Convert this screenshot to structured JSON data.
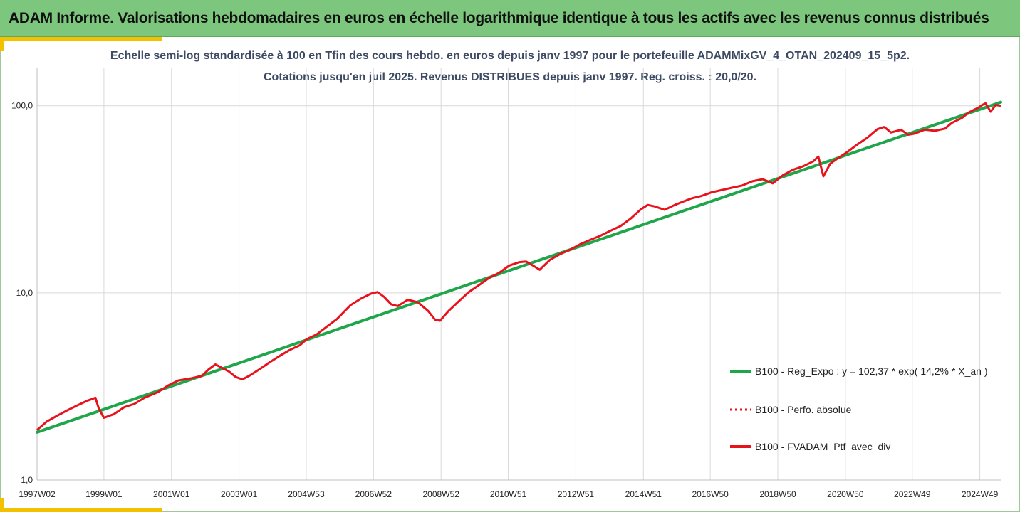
{
  "header": {
    "title": "ADAM Informe. Valorisations hebdomadaires en euros en échelle logarithmique identique à tous les actifs avec les revenus connus distribués"
  },
  "chart_data": {
    "type": "line",
    "subtitle_line1": "Echelle semi-log standardisée  à 100 en Tfin des cours hebdo.  en euros depuis janv 1997 pour le portefeuille ADAMMixGV_4_OTAN_202409_15_5p2.",
    "subtitle_line2": "Cotations  jusqu'en juil 2025. Revenus DISTRIBUES depuis janv 1997. Reg. croiss. : 20,0/20.",
    "y_scale": "log",
    "ylim": [
      1,
      160
    ],
    "y_ticks": [
      {
        "value": 1,
        "label": "1,0"
      },
      {
        "value": 10,
        "label": "10,0"
      },
      {
        "value": 100,
        "label": "100,0"
      }
    ],
    "x_range": [
      1997.02,
      2025.55
    ],
    "x_ticks": [
      {
        "x": 1997.02,
        "label": "1997W02"
      },
      {
        "x": 1999.0,
        "label": "1999W01"
      },
      {
        "x": 2001.0,
        "label": "2001W01"
      },
      {
        "x": 2003.0,
        "label": "2003W01"
      },
      {
        "x": 2004.99,
        "label": "2004W53"
      },
      {
        "x": 2006.98,
        "label": "2006W52"
      },
      {
        "x": 2008.98,
        "label": "2008W52"
      },
      {
        "x": 2010.97,
        "label": "2010W51"
      },
      {
        "x": 2012.97,
        "label": "2012W51"
      },
      {
        "x": 2014.97,
        "label": "2014W51"
      },
      {
        "x": 2016.95,
        "label": "2016W50"
      },
      {
        "x": 2018.95,
        "label": "2018W50"
      },
      {
        "x": 2020.95,
        "label": "2020W50"
      },
      {
        "x": 2022.93,
        "label": "2022W49"
      },
      {
        "x": 2024.93,
        "label": "2024W49"
      }
    ],
    "grid": true,
    "legend_position": "right",
    "series": [
      {
        "name": "B100 - Reg_Expo : y = 102,37 * exp( 14,2% *  X_an )",
        "color": "#1fa64a",
        "style": "solid",
        "x": [
          1997.02,
          2025.55
        ],
        "y": [
          1.8,
          104.5
        ]
      },
      {
        "name": "B100 - Perfo. absolue",
        "color": "#e8121c",
        "style": "dotted",
        "x": [],
        "y": []
      },
      {
        "name": "B100 - FVADAM_Ptf_avec_div",
        "color": "#e8121c",
        "style": "solid",
        "x": [
          1997.02,
          1997.3,
          1997.6,
          1997.9,
          1998.2,
          1998.5,
          1998.75,
          1998.85,
          1999.0,
          1999.3,
          1999.6,
          1999.9,
          2000.2,
          2000.6,
          2000.9,
          2001.2,
          2001.6,
          2001.9,
          2002.1,
          2002.3,
          2002.7,
          2002.9,
          2003.1,
          2003.3,
          2003.6,
          2003.9,
          2004.2,
          2004.5,
          2004.8,
          2005.0,
          2005.3,
          2005.6,
          2005.9,
          2006.1,
          2006.3,
          2006.6,
          2006.9,
          2007.1,
          2007.3,
          2007.5,
          2007.7,
          2008.0,
          2008.3,
          2008.6,
          2008.8,
          2008.95,
          2009.2,
          2009.5,
          2009.8,
          2010.1,
          2010.4,
          2010.7,
          2011.0,
          2011.3,
          2011.5,
          2011.7,
          2011.9,
          2012.2,
          2012.5,
          2012.8,
          2013.1,
          2013.4,
          2013.7,
          2014.0,
          2014.3,
          2014.6,
          2014.9,
          2015.1,
          2015.3,
          2015.6,
          2015.9,
          2016.1,
          2016.4,
          2016.7,
          2017.0,
          2017.3,
          2017.6,
          2017.9,
          2018.2,
          2018.5,
          2018.8,
          2019.1,
          2019.4,
          2019.7,
          2020.0,
          2020.15,
          2020.3,
          2020.5,
          2020.8,
          2021.0,
          2021.3,
          2021.6,
          2021.9,
          2022.1,
          2022.3,
          2022.6,
          2022.8,
          2023.0,
          2023.3,
          2023.6,
          2023.9,
          2024.1,
          2024.4,
          2024.6,
          2024.9,
          2025.0,
          2025.1,
          2025.25,
          2025.4,
          2025.55
        ],
        "y": [
          1.85,
          2.05,
          2.2,
          2.35,
          2.5,
          2.65,
          2.75,
          2.4,
          2.15,
          2.25,
          2.45,
          2.55,
          2.75,
          2.95,
          3.2,
          3.4,
          3.5,
          3.6,
          3.9,
          4.15,
          3.8,
          3.55,
          3.45,
          3.6,
          3.9,
          4.25,
          4.6,
          4.95,
          5.25,
          5.65,
          6.0,
          6.6,
          7.25,
          7.9,
          8.6,
          9.3,
          9.9,
          10.1,
          9.5,
          8.7,
          8.5,
          9.2,
          8.9,
          8.0,
          7.2,
          7.1,
          8.0,
          9.0,
          10.1,
          11.0,
          12.0,
          12.8,
          14.0,
          14.6,
          14.7,
          14.0,
          13.3,
          15.0,
          16.1,
          17.0,
          18.2,
          19.2,
          20.2,
          21.5,
          22.8,
          25.0,
          28.0,
          29.5,
          29.0,
          27.8,
          29.5,
          30.5,
          32.0,
          33.0,
          34.5,
          35.5,
          36.5,
          37.5,
          39.5,
          40.5,
          38.5,
          42.5,
          45.5,
          47.5,
          50.5,
          53.5,
          42.0,
          49.0,
          53.5,
          56.5,
          62.0,
          67.5,
          75.0,
          77.0,
          72.0,
          74.5,
          70.0,
          71.0,
          74.5,
          73.5,
          75.5,
          81.0,
          86.0,
          92.0,
          98.0,
          101.0,
          103.0,
          93.0,
          101.0,
          100.0
        ]
      }
    ]
  }
}
